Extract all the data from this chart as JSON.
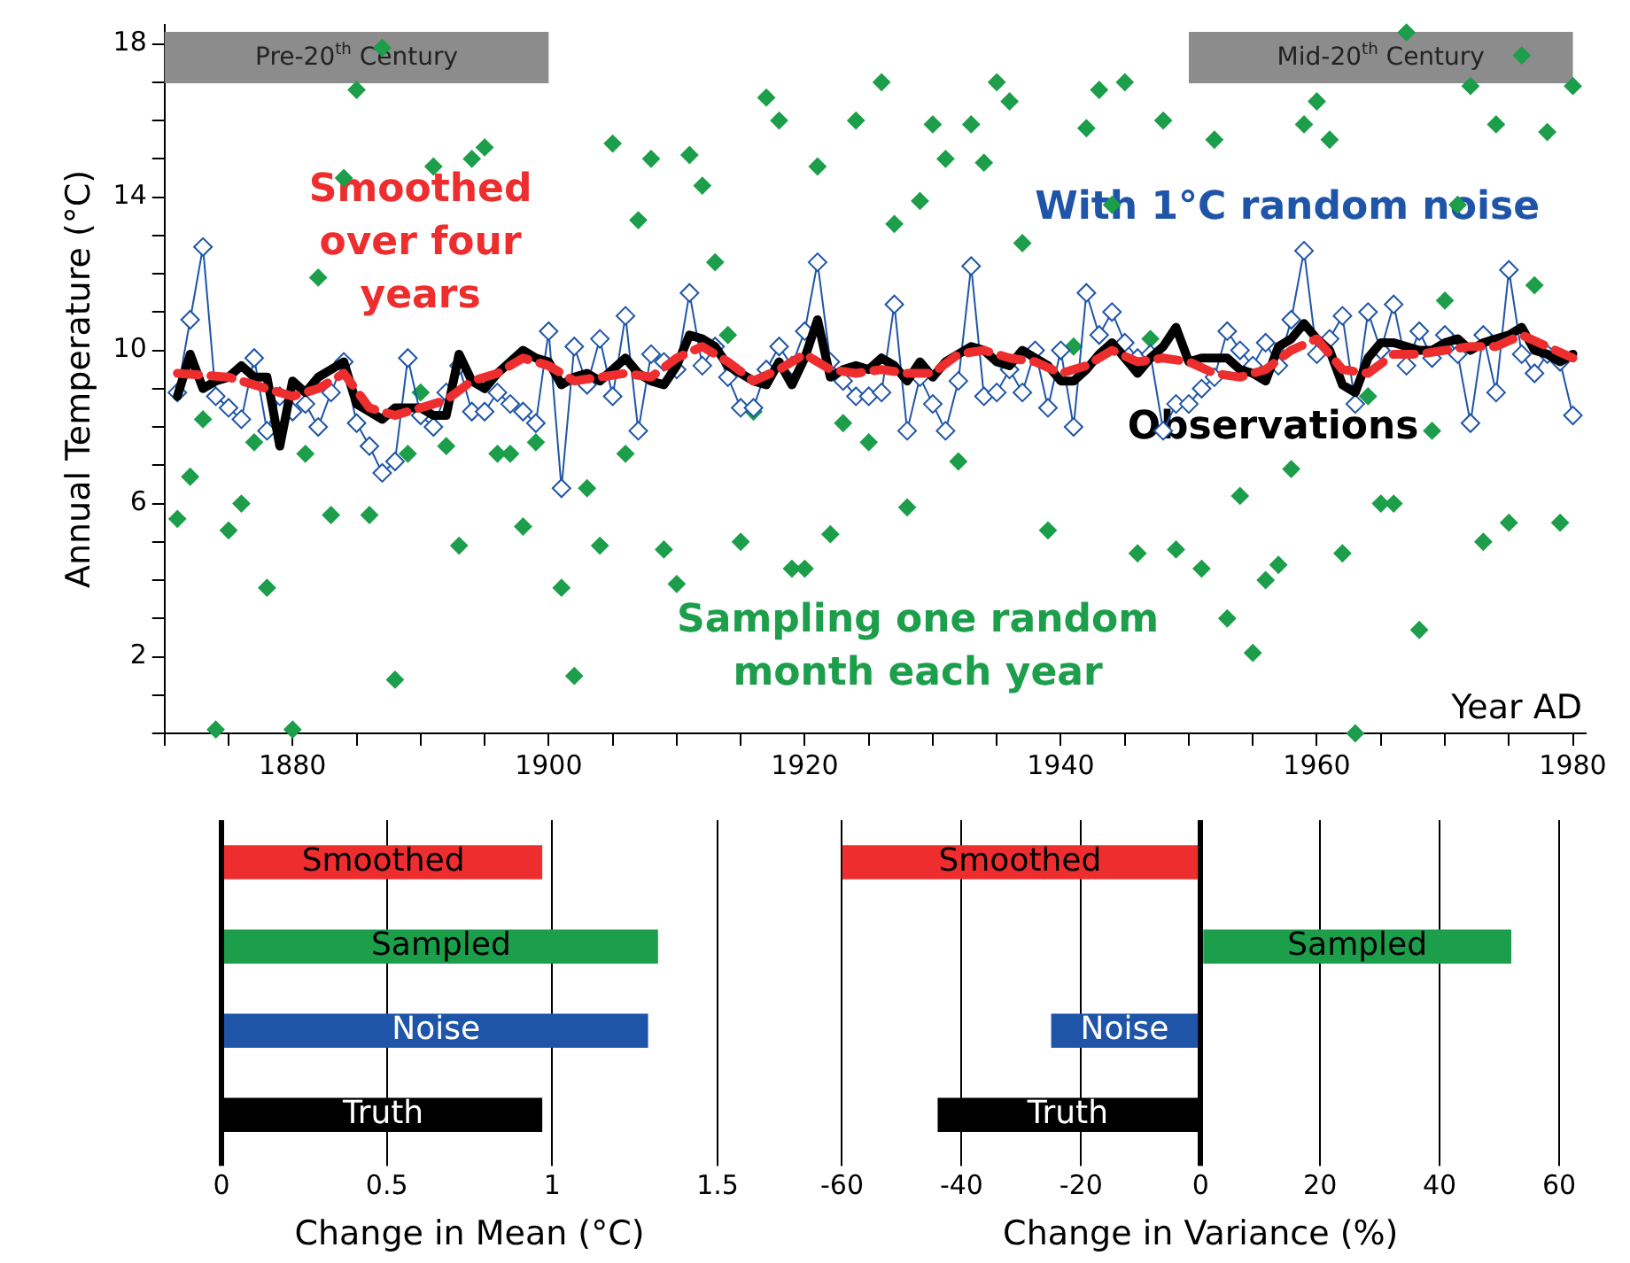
{
  "chart_data": [
    {
      "type": "line",
      "xlabel": "Year AD",
      "ylabel": "Annual Temperature (°C)",
      "xlim": [
        1870,
        1981
      ],
      "ylim": [
        0,
        18.5
      ],
      "xticks": [
        {
          "value": 1870,
          "label": null
        },
        {
          "value": 1875,
          "label": null
        },
        1880,
        {
          "value": 1885,
          "label": null
        },
        {
          "value": 1890,
          "label": null
        },
        {
          "value": 1895,
          "label": null
        },
        1900,
        {
          "value": 1905,
          "label": null
        },
        {
          "value": 1910,
          "label": null
        },
        {
          "value": 1915,
          "label": null
        },
        1920,
        {
          "value": 1925,
          "label": null
        },
        {
          "value": 1930,
          "label": null
        },
        {
          "value": 1935,
          "label": null
        },
        1940,
        {
          "value": 1945,
          "label": null
        },
        {
          "value": 1950,
          "label": null
        },
        {
          "value": 1955,
          "label": null
        },
        1960,
        {
          "value": 1965,
          "label": null
        },
        {
          "value": 1970,
          "label": null
        },
        {
          "value": 1975,
          "label": null
        },
        1980
      ],
      "yticks": [
        {
          "value": 0,
          "label": null
        },
        {
          "value": 1,
          "label": null
        },
        2,
        {
          "value": 3,
          "label": null
        },
        {
          "value": 4,
          "label": null
        },
        {
          "value": 5,
          "label": null
        },
        6,
        {
          "value": 7,
          "label": null
        },
        {
          "value": 8,
          "label": null
        },
        {
          "value": 9,
          "label": null
        },
        10,
        {
          "value": 11,
          "label": null
        },
        {
          "value": 12,
          "label": null
        },
        {
          "value": 13,
          "label": null
        },
        14,
        {
          "value": 15,
          "label": null
        },
        {
          "value": 16,
          "label": null
        },
        {
          "value": 17,
          "label": null
        },
        18
      ],
      "grid": false,
      "legend": false,
      "bands": [
        {
          "axis": "x",
          "from": 1870,
          "to": 1900,
          "label": "Pre-20$^{th}$ Century",
          "color": "#8c8c8c"
        },
        {
          "axis": "x",
          "from": 1950,
          "to": 1980,
          "label": "Mid-20$^{th}$ Century",
          "color": "#8c8c8c"
        }
      ],
      "x": [
        1871,
        1872,
        1873,
        1874,
        1875,
        1876,
        1877,
        1878,
        1879,
        1880,
        1881,
        1882,
        1883,
        1884,
        1885,
        1886,
        1887,
        1888,
        1889,
        1890,
        1891,
        1892,
        1893,
        1894,
        1895,
        1896,
        1897,
        1898,
        1899,
        1900,
        1901,
        1902,
        1903,
        1904,
        1905,
        1906,
        1907,
        1908,
        1909,
        1910,
        1911,
        1912,
        1913,
        1914,
        1915,
        1916,
        1917,
        1918,
        1919,
        1920,
        1921,
        1922,
        1923,
        1924,
        1925,
        1926,
        1927,
        1928,
        1929,
        1930,
        1931,
        1932,
        1933,
        1934,
        1935,
        1936,
        1937,
        1938,
        1939,
        1940,
        1941,
        1942,
        1943,
        1944,
        1945,
        1946,
        1947,
        1948,
        1949,
        1950,
        1951,
        1952,
        1953,
        1954,
        1955,
        1956,
        1957,
        1958,
        1959,
        1960,
        1961,
        1962,
        1963,
        1964,
        1965,
        1966,
        1967,
        1968,
        1969,
        1970,
        1971,
        1972,
        1973,
        1974,
        1975,
        1976,
        1977,
        1978,
        1979,
        1980
      ],
      "series": [
        {
          "name": "Smoothed over four years",
          "type": "line",
          "color": "#ee2e2e",
          "marker": "none",
          "line_style": "dashed",
          "x": [
            1871,
            1875,
            1878,
            1880,
            1882,
            1884,
            1886,
            1888,
            1890,
            1892,
            1894,
            1896,
            1898,
            1900,
            1902,
            1904,
            1906,
            1908,
            1910,
            1912,
            1914,
            1916,
            1918,
            1920,
            1922,
            1924,
            1926,
            1928,
            1930,
            1932,
            1934,
            1936,
            1938,
            1940,
            1942,
            1944,
            1946,
            1948,
            1950,
            1952,
            1954,
            1956,
            1958,
            1960,
            1962,
            1964,
            1966,
            1968,
            1970,
            1972,
            1974,
            1976,
            1978,
            1980
          ],
          "values": [
            9.4,
            9.3,
            9.0,
            8.8,
            9.0,
            9.4,
            8.5,
            8.3,
            8.5,
            8.7,
            9.2,
            9.4,
            9.8,
            9.6,
            9.2,
            9.3,
            9.4,
            9.3,
            9.8,
            10.1,
            9.7,
            9.2,
            9.5,
            9.9,
            9.5,
            9.4,
            9.5,
            9.4,
            9.4,
            9.9,
            10.0,
            9.8,
            9.7,
            9.4,
            9.6,
            10.0,
            9.7,
            9.8,
            9.7,
            9.4,
            9.3,
            9.5,
            10.0,
            10.3,
            9.5,
            9.4,
            9.9,
            9.9,
            10.0,
            10.1,
            10.1,
            10.4,
            10.1,
            9.8
          ]
        },
        {
          "name": "Observations",
          "type": "line",
          "color": "#000000",
          "marker": "none",
          "line_style": "solid",
          "values": [
            8.8,
            9.9,
            9.0,
            9.2,
            9.3,
            9.6,
            9.3,
            9.3,
            7.5,
            9.2,
            8.9,
            9.3,
            9.5,
            9.7,
            8.6,
            8.4,
            8.2,
            8.5,
            8.5,
            8.5,
            8.3,
            8.3,
            9.9,
            9.2,
            9.0,
            9.4,
            9.7,
            10.0,
            9.8,
            9.7,
            9.1,
            9.3,
            9.4,
            9.2,
            9.5,
            9.8,
            9.4,
            9.2,
            9.1,
            9.6,
            10.4,
            10.3,
            10.1,
            9.6,
            9.4,
            9.2,
            9.1,
            9.7,
            9.1,
            9.8,
            10.8,
            9.3,
            9.5,
            9.6,
            9.5,
            9.8,
            9.6,
            9.2,
            9.7,
            9.3,
            9.7,
            9.9,
            10.1,
            10.0,
            9.7,
            9.6,
            10.0,
            9.8,
            9.6,
            9.2,
            9.2,
            9.5,
            9.9,
            10.2,
            9.8,
            9.4,
            9.8,
            10.1,
            10.6,
            9.7,
            9.8,
            9.8,
            9.8,
            9.5,
            9.4,
            9.2,
            10.1,
            10.3,
            10.7,
            10.3,
            10.0,
            9.1,
            8.9,
            9.8,
            10.2,
            10.2,
            10.1,
            10.0,
            10.0,
            10.2,
            10.3,
            10.0,
            10.2,
            10.3,
            10.4,
            10.6,
            10.0,
            9.9,
            9.7,
            9.9
          ]
        },
        {
          "name": "With 1°C random noise",
          "type": "line",
          "color": "#1f55a8",
          "marker": "diamond",
          "line_style": "solid",
          "values": [
            8.9,
            10.8,
            12.7,
            8.8,
            8.5,
            8.2,
            9.8,
            7.9,
            8.8,
            8.4,
            8.6,
            8.0,
            8.9,
            9.7,
            8.1,
            7.5,
            6.8,
            7.1,
            9.8,
            8.3,
            8.0,
            8.9,
            9.6,
            8.4,
            8.4,
            8.9,
            8.6,
            8.4,
            8.1,
            10.5,
            6.4,
            10.1,
            9.1,
            10.3,
            8.8,
            10.9,
            7.9,
            9.9,
            9.7,
            9.5,
            11.5,
            9.6,
            10.1,
            9.3,
            8.5,
            8.5,
            9.5,
            10.1,
            9.6,
            10.5,
            12.3,
            9.7,
            9.2,
            8.8,
            8.8,
            8.9,
            11.2,
            7.9,
            9.3,
            8.6,
            7.9,
            9.2,
            12.2,
            8.8,
            8.9,
            9.5,
            8.9,
            10.0,
            8.5,
            10.0,
            8.0,
            11.5,
            10.4,
            11.0,
            10.2,
            9.8,
            9.9,
            7.9,
            8.6,
            8.6,
            9.0,
            9.3,
            10.5,
            10.0,
            9.6,
            10.2,
            9.6,
            10.8,
            12.6,
            9.9,
            10.3,
            10.9,
            8.6,
            11.0,
            10.0,
            11.2,
            9.6,
            10.5,
            9.8,
            10.4,
            9.9,
            8.1,
            10.4,
            8.9,
            12.1,
            9.9,
            9.4,
            9.9,
            9.7,
            8.3
          ]
        },
        {
          "name": "Sampling one random month each year",
          "type": "scatter",
          "color": "#1c9e4a",
          "marker": "diamond",
          "x": [
            1871,
            1872,
            1873,
            1874,
            1875,
            1876,
            1877,
            1878,
            1880,
            1881,
            1882,
            1883,
            1884,
            1885,
            1886,
            1887,
            1888,
            1889,
            1890,
            1891,
            1892,
            1893,
            1894,
            1895,
            1896,
            1897,
            1898,
            1899,
            1901,
            1902,
            1903,
            1904,
            1905,
            1906,
            1907,
            1908,
            1909,
            1910,
            1911,
            1912,
            1913,
            1914,
            1915,
            1916,
            1917,
            1918,
            1919,
            1920,
            1921,
            1922,
            1923,
            1924,
            1925,
            1926,
            1927,
            1928,
            1929,
            1930,
            1931,
            1932,
            1933,
            1934,
            1935,
            1936,
            1937,
            1939,
            1941,
            1942,
            1943,
            1944,
            1945,
            1946,
            1947,
            1948,
            1949,
            1951,
            1952,
            1953,
            1954,
            1955,
            1956,
            1957,
            1958,
            1959,
            1960,
            1961,
            1962,
            1963,
            1964,
            1965,
            1966,
            1967,
            1968,
            1969,
            1970,
            1971,
            1972,
            1973,
            1974,
            1975,
            1976,
            1977,
            1978,
            1979,
            1980
          ],
          "values": [
            5.6,
            6.7,
            8.2,
            0.1,
            5.3,
            6.0,
            7.6,
            3.8,
            0.1,
            7.3,
            11.9,
            5.7,
            14.5,
            16.8,
            5.7,
            17.9,
            1.4,
            7.3,
            8.9,
            14.8,
            7.5,
            4.9,
            15.0,
            15.3,
            7.3,
            7.3,
            5.4,
            7.6,
            3.8,
            1.5,
            6.4,
            4.9,
            15.4,
            7.3,
            13.4,
            15.0,
            4.8,
            3.9,
            15.1,
            14.3,
            12.3,
            10.4,
            5.0,
            8.4,
            16.6,
            16.0,
            4.3,
            4.3,
            14.8,
            5.2,
            8.1,
            16.0,
            7.6,
            17.0,
            13.3,
            5.9,
            13.9,
            15.9,
            15.0,
            7.1,
            15.9,
            14.9,
            17.0,
            16.5,
            12.8,
            5.3,
            10.1,
            15.8,
            16.8,
            13.8,
            17.0,
            4.7,
            10.3,
            16.0,
            4.8,
            4.3,
            15.5,
            3.0,
            6.2,
            2.1,
            4.0,
            4.4,
            6.9,
            15.9,
            16.5,
            15.5,
            4.7,
            0.0,
            8.8,
            6.0,
            6.0,
            18.3,
            2.7,
            7.9,
            11.3,
            13.8,
            16.9,
            5.0,
            15.9,
            5.5,
            17.7,
            11.7,
            15.7,
            5.5,
            16.9
          ]
        }
      ]
    },
    {
      "type": "bar",
      "orientation": "horizontal",
      "xlabel": "Change in Mean (°C)",
      "categories": [
        "Smoothed",
        "Sampled",
        "Noise",
        "Truth"
      ],
      "values": [
        0.97,
        1.32,
        1.29,
        0.97
      ],
      "colors": [
        "#ee2e2e",
        "#1c9e4a",
        "#1f55a8",
        "#000000"
      ],
      "xlim": [
        0,
        1.5
      ],
      "xticks": [
        0,
        0.5,
        1,
        1.5
      ],
      "grid": "x",
      "tick_labels": "x",
      "legend": false
    },
    {
      "type": "bar",
      "orientation": "horizontal",
      "xlabel": "Change in Variance (%)",
      "categories": [
        "Smoothed",
        "Sampled",
        "Noise",
        "Truth"
      ],
      "values": [
        -60,
        52,
        -25,
        -44
      ],
      "colors": [
        "#ee2e2e",
        "#1c9e4a",
        "#1f55a8",
        "#000000"
      ],
      "xlim": [
        -60,
        60
      ],
      "xticks": [
        -60,
        -40,
        -20,
        0,
        20,
        40,
        60
      ],
      "grid": "x",
      "tick_labels": "x",
      "legend": false
    }
  ]
}
